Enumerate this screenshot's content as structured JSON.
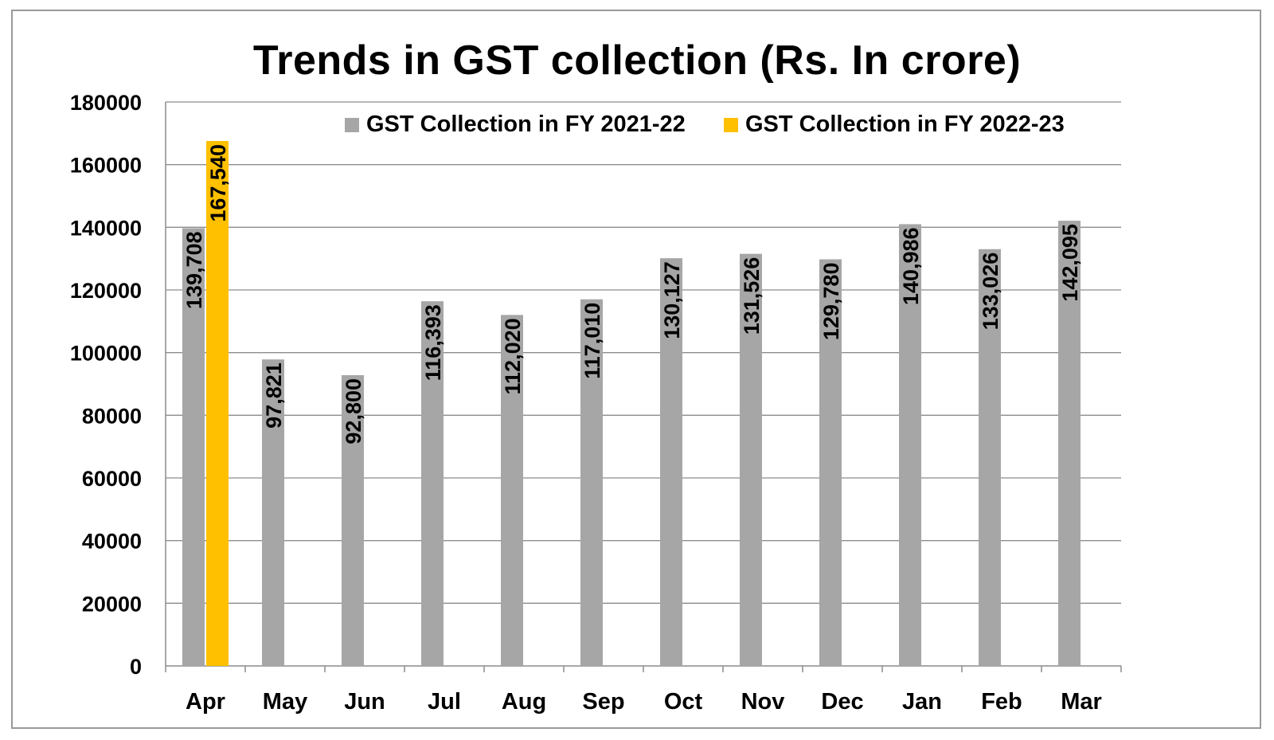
{
  "chart_data": {
    "type": "bar",
    "title": "Trends in GST collection (Rs. In crore)",
    "xlabel": "",
    "ylabel": "",
    "ylim": [
      0,
      180000
    ],
    "yticks": [
      0,
      20000,
      40000,
      60000,
      80000,
      100000,
      120000,
      140000,
      160000,
      180000
    ],
    "grid": true,
    "legend_position": "top",
    "categories": [
      "Apr",
      "May",
      "Jun",
      "Jul",
      "Aug",
      "Sep",
      "Oct",
      "Nov",
      "Dec",
      "Jan",
      "Feb",
      "Mar"
    ],
    "series": [
      {
        "name": "GST Collection in FY 2021-22",
        "color": "#a6a6a6",
        "values": [
          139708,
          97821,
          92800,
          116393,
          112020,
          117010,
          130127,
          131526,
          129780,
          140986,
          133026,
          142095
        ],
        "labels": [
          "139,708",
          "97,821",
          "92,800",
          "116,393",
          "112,020",
          "117,010",
          "130,127",
          "131,526",
          "129,780",
          "140,986",
          "133,026",
          "142,095"
        ]
      },
      {
        "name": "GST Collection in FY 2022-23",
        "color": "#ffc000",
        "values": [
          167540,
          null,
          null,
          null,
          null,
          null,
          null,
          null,
          null,
          null,
          null,
          null
        ],
        "labels": [
          "167,540",
          null,
          null,
          null,
          null,
          null,
          null,
          null,
          null,
          null,
          null,
          null
        ]
      }
    ]
  }
}
